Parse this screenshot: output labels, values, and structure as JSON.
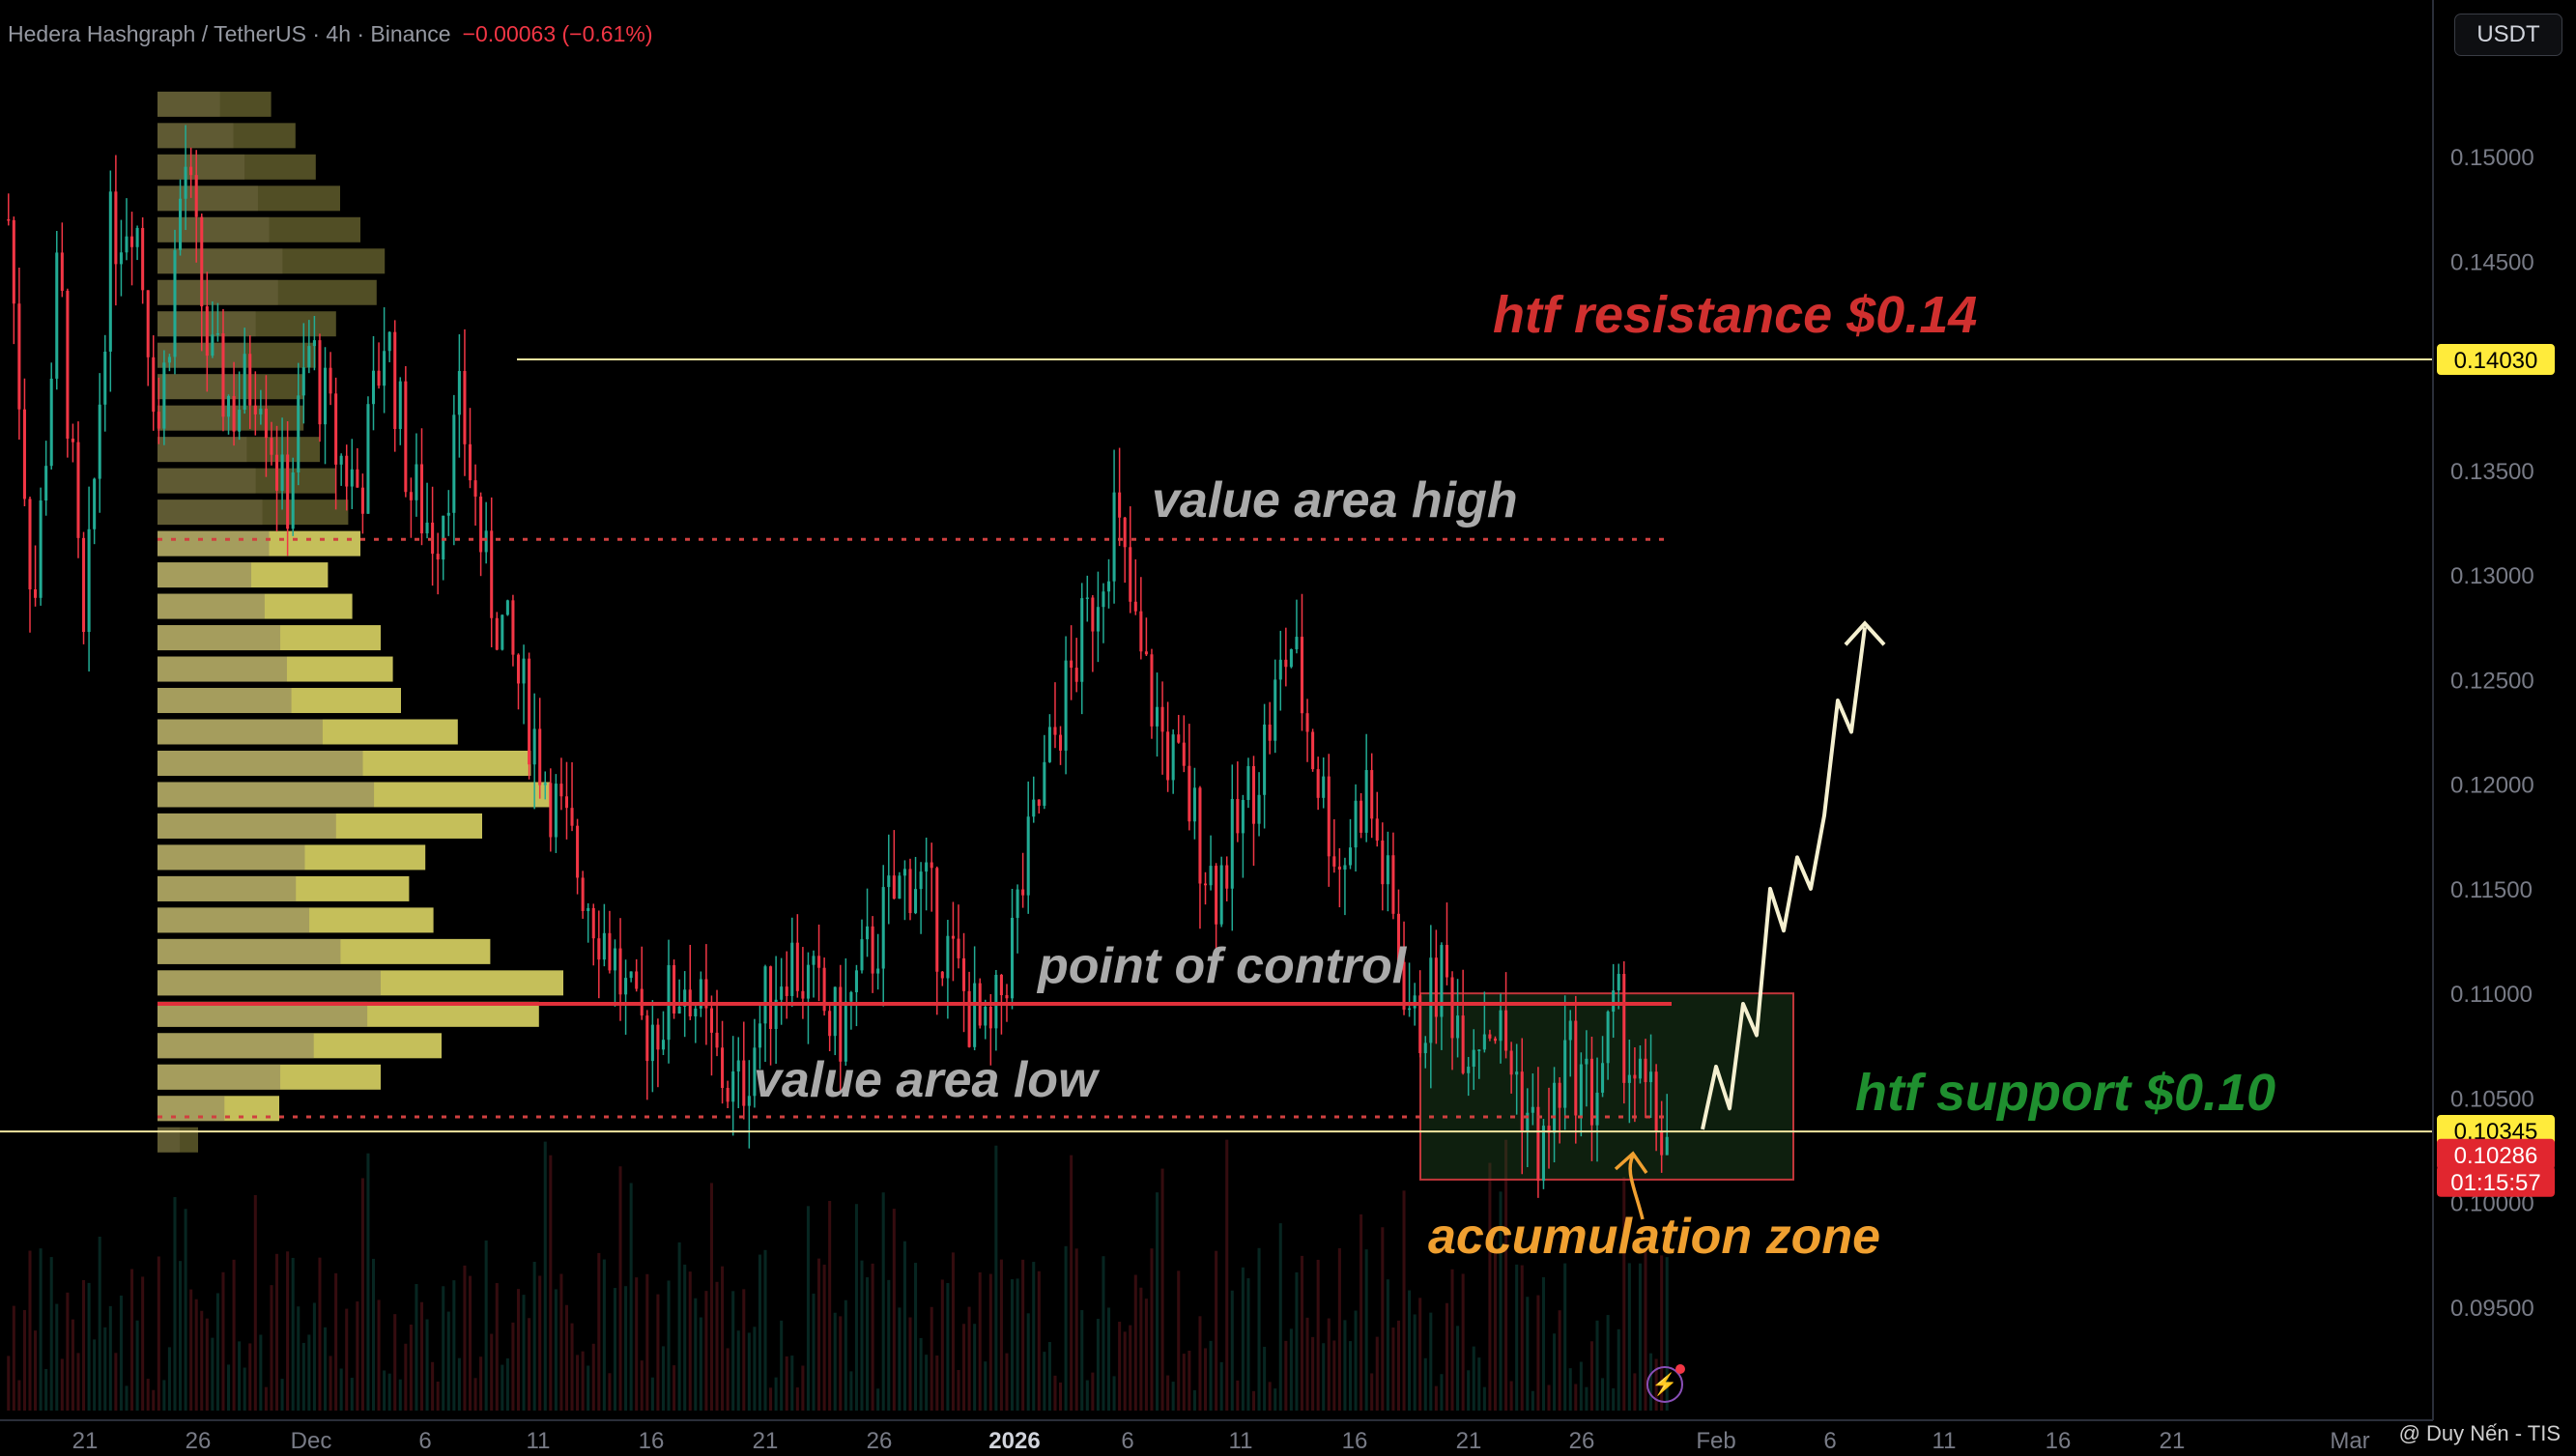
{
  "header": {
    "symbol": "Hedera Hashgraph / TetherUS · 4h · Binance",
    "change": "−0.00063 (−0.61%)"
  },
  "currency_button": "USDT",
  "watermark": "@ Duy Nến - TIS",
  "colors": {
    "background": "#000000",
    "up": "#22ab94",
    "down": "#f23645",
    "resistance": "#d0302f",
    "support": "#1f8f2f",
    "value_area": "#aaaaaa",
    "accumulation": "#f0a030",
    "price_tag": "#ffeb3b",
    "volume_profile": "#e7e06a"
  },
  "chart_data": {
    "type": "candlestick",
    "interval": "4h",
    "ylim": [
      0.091,
      0.157
    ],
    "y_ticks": [
      "0.15000",
      "0.14500",
      "0.14000",
      "0.13500",
      "0.13000",
      "0.12500",
      "0.12000",
      "0.11500",
      "0.11000",
      "0.10500",
      "0.10000",
      "0.09500"
    ],
    "x_ticks": [
      "21",
      "26",
      "Dec",
      "6",
      "11",
      "16",
      "21",
      "26",
      "2026",
      "6",
      "11",
      "16",
      "21",
      "26",
      "Feb",
      "6",
      "11",
      "16",
      "21",
      "Mar"
    ],
    "price_path": [
      [
        0.147,
        0.128,
        0.145,
        0.126,
        0.146,
        0.148,
        0.137,
        0.15,
        0.14,
        0.138
      ],
      [
        0.14,
        0.133,
        0.141,
        0.136,
        0.134,
        0.142,
        0.134,
        0.132,
        0.138,
        0.13
      ],
      [
        0.126,
        0.122,
        0.118,
        0.115,
        0.112,
        0.108,
        0.109,
        0.111,
        0.107,
        0.105
      ],
      [
        0.109,
        0.112,
        0.11,
        0.108,
        0.111,
        0.114,
        0.116,
        0.113,
        0.11,
        0.107
      ],
      [
        0.113,
        0.119,
        0.124,
        0.128,
        0.133,
        0.126,
        0.122,
        0.119,
        0.115,
        0.118
      ],
      [
        0.122,
        0.127,
        0.121,
        0.116,
        0.12,
        0.114,
        0.108,
        0.111,
        0.108,
        0.109
      ],
      [
        0.106,
        0.102,
        0.107,
        0.105,
        0.109,
        0.105,
        0.103
      ]
    ],
    "volume_profile_levels": [
      0.1525,
      0.151,
      0.1495,
      0.148,
      0.1465,
      0.145,
      0.1435,
      0.142,
      0.1405,
      0.139,
      0.1375,
      0.136,
      0.1345,
      0.133,
      0.1315,
      0.13,
      0.1285,
      0.127,
      0.1255,
      0.124,
      0.1225,
      0.121,
      0.1195,
      0.118,
      0.1165,
      0.115,
      0.1135,
      0.112,
      0.1105,
      0.109,
      0.1075,
      0.106,
      0.1045,
      0.103
    ],
    "volume_profile_weights": [
      0.28,
      0.34,
      0.39,
      0.45,
      0.5,
      0.56,
      0.54,
      0.44,
      0.39,
      0.36,
      0.36,
      0.4,
      0.44,
      0.47,
      0.5,
      0.42,
      0.48,
      0.55,
      0.58,
      0.6,
      0.74,
      0.92,
      0.97,
      0.8,
      0.66,
      0.62,
      0.68,
      0.82,
      1.0,
      0.94,
      0.7,
      0.55,
      0.3,
      0.1
    ],
    "levels": {
      "htf_resistance": 0.1403,
      "value_area_high": 0.1317,
      "point_of_control": 0.1095,
      "value_area_low": 0.1041,
      "htf_support": 0.1034
    },
    "price_tags": [
      {
        "value": "0.14030",
        "type": "level"
      },
      {
        "value": "0.10345",
        "type": "level"
      },
      {
        "value": "0.10286",
        "type": "last"
      },
      {
        "value": "01:15:57",
        "type": "countdown"
      }
    ],
    "accumulation_zone": {
      "from_date": "Jan 19",
      "to_date": "Feb 3",
      "low": 0.1011,
      "high": 0.11
    },
    "projection": [
      0.1035,
      0.1065,
      0.1045,
      0.1095,
      0.108,
      0.115,
      0.113,
      0.1165,
      0.115,
      0.1185,
      0.124,
      0.1225,
      0.1275
    ]
  },
  "annotations": {
    "htf_resistance": "htf resistance $0.14",
    "value_area_high": "value area high",
    "point_of_control": "point of control",
    "value_area_low": "value area low",
    "htf_support": "htf support $0.10",
    "accumulation_zone": "accumulation zone"
  }
}
